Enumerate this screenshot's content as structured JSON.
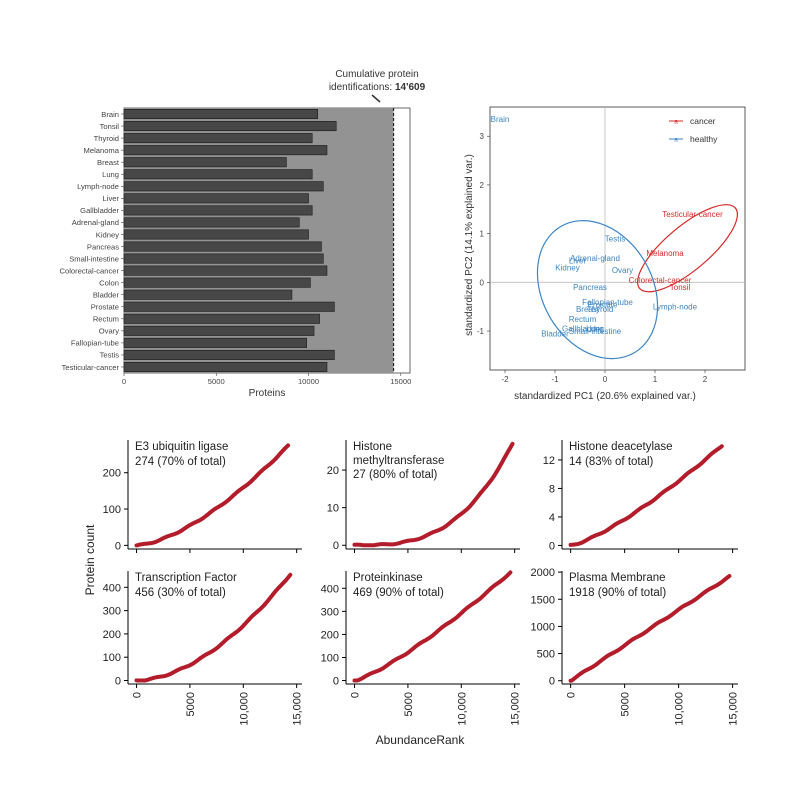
{
  "colors": {
    "bar": "#474747",
    "cumulative": "#939393",
    "cancer": "#d62a2a",
    "healthy": "#3c86c4",
    "curve": "#b31d2b",
    "grid": "#d9d9d9"
  },
  "chart_data": [
    {
      "type": "bar",
      "orientation": "horizontal",
      "categories": [
        "Brain",
        "Tonsil",
        "Thyroid",
        "Melanoma",
        "Breast",
        "Lung",
        "Lymph-node",
        "Liver",
        "Gallbladder",
        "Adrenal-gland",
        "Kidney",
        "Pancreas",
        "Small-intestine",
        "Colorectal-cancer",
        "Colon",
        "Bladder",
        "Prostate",
        "Rectum",
        "Ovary",
        "Fallopian-tube",
        "Testis",
        "Testicular-cancer"
      ],
      "values": [
        10500,
        11500,
        10200,
        11000,
        8800,
        10200,
        10800,
        10000,
        10200,
        9500,
        10000,
        10700,
        10800,
        11000,
        10100,
        9100,
        11400,
        10600,
        10300,
        9900,
        11400,
        11000
      ],
      "cumulative_total": 14609,
      "xlabel": "Proteins",
      "xlim": [
        0,
        15500
      ],
      "xticks": [
        0,
        5000,
        10000,
        15000
      ],
      "annotation": {
        "line1": "Cumulative protein",
        "line2_prefix": "identifications: ",
        "line2_value": "14'609"
      }
    },
    {
      "type": "scatter",
      "xlabel": "standardized PC1 (20.6% explained var.)",
      "ylabel": "standardized PC2 (14.1% explained var.)",
      "xlim": [
        -2.3,
        2.8
      ],
      "ylim": [
        -1.8,
        3.6
      ],
      "xticks": [
        -2,
        -1,
        0,
        1,
        2
      ],
      "yticks": [
        -1,
        0,
        1,
        2,
        3
      ],
      "legend": {
        "position": "top-right",
        "entries": [
          "cancer",
          "healthy"
        ]
      },
      "series": [
        {
          "name": "cancer",
          "points": [
            {
              "label": "Testicular-cancer",
              "x": 1.75,
              "y": 1.4
            },
            {
              "label": "Melanoma",
              "x": 1.2,
              "y": 0.6
            },
            {
              "label": "Colorectal-cancer",
              "x": 1.1,
              "y": 0.05
            },
            {
              "label": "Tonsil",
              "x": 1.5,
              "y": -0.1
            }
          ],
          "ellipse": {
            "cx": 1.65,
            "cy": 0.7,
            "rx": 1.25,
            "ry": 0.45,
            "angle_deg": -40
          }
        },
        {
          "name": "healthy",
          "points": [
            {
              "label": "Brain",
              "x": -2.1,
              "y": 3.35
            },
            {
              "label": "Testis",
              "x": 0.2,
              "y": 0.9
            },
            {
              "label": "Adrenal-gland",
              "x": -0.2,
              "y": 0.5
            },
            {
              "label": "Liver",
              "x": -0.55,
              "y": 0.45
            },
            {
              "label": "Kidney",
              "x": -0.75,
              "y": 0.3
            },
            {
              "label": "Ovary",
              "x": 0.35,
              "y": 0.25
            },
            {
              "label": "Pancreas",
              "x": -0.3,
              "y": -0.1
            },
            {
              "label": "Fallopian-tube",
              "x": 0.05,
              "y": -0.4
            },
            {
              "label": "Prostate",
              "x": -0.05,
              "y": -0.45
            },
            {
              "label": "Breast",
              "x": -0.35,
              "y": -0.55
            },
            {
              "label": "Thyroid",
              "x": -0.1,
              "y": -0.55
            },
            {
              "label": "Lymph-node",
              "x": 1.4,
              "y": -0.5
            },
            {
              "label": "Rectum",
              "x": -0.45,
              "y": -0.75
            },
            {
              "label": "Gallbladder",
              "x": -0.45,
              "y": -0.95
            },
            {
              "label": "Lung",
              "x": -0.2,
              "y": -0.95
            },
            {
              "label": "Small-intestine",
              "x": -0.2,
              "y": -1.0
            },
            {
              "label": "Bladder",
              "x": -1.0,
              "y": -1.05
            }
          ],
          "ellipse": {
            "cx": -0.15,
            "cy": -0.15,
            "rx": 1.1,
            "ry": 1.5,
            "angle_deg": -30
          }
        }
      ]
    },
    {
      "type": "line",
      "panels": [
        {
          "title": "E3 ubiquitin ligase",
          "subtitle": "274 (70% of total)",
          "yticks": [
            0,
            100,
            200
          ],
          "ylim": [
            -10,
            290
          ],
          "end_x": 14200,
          "end_y": 274,
          "exponent": 1.55
        },
        {
          "title": "Histone methyltransferase",
          "subtitle": "27 (80% of total)",
          "yticks": [
            0,
            10,
            20
          ],
          "ylim": [
            -1,
            28
          ],
          "end_x": 14800,
          "end_y": 27,
          "exponent": 3.0
        },
        {
          "title": "Histone deacetylase",
          "subtitle": "14 (83% of total)",
          "yticks": [
            0,
            4,
            8,
            12
          ],
          "ylim": [
            -0.5,
            14.8
          ],
          "end_x": 14000,
          "end_y": 14,
          "exponent": 1.3
        },
        {
          "title": "Transcription Factor",
          "subtitle": "456 (30% of total)",
          "yticks": [
            0,
            100,
            200,
            300,
            400
          ],
          "ylim": [
            -15,
            470
          ],
          "end_x": 14400,
          "end_y": 456,
          "exponent": 1.8
        },
        {
          "title": "Proteinkinase",
          "subtitle": "469 (90% of total)",
          "yticks": [
            0,
            100,
            200,
            300,
            400
          ],
          "ylim": [
            -15,
            475
          ],
          "end_x": 14600,
          "end_y": 469,
          "exponent": 1.25
        },
        {
          "title": "Plasma Membrane",
          "subtitle": "1918 (90% of total)",
          "yticks": [
            0,
            500,
            1000,
            1500,
            2000
          ],
          "ylim": [
            -60,
            2020
          ],
          "end_x": 14700,
          "end_y": 1918,
          "exponent": 1.0
        }
      ],
      "xticks": [
        0,
        5000,
        10000,
        15000
      ],
      "xtick_labels": [
        "0",
        "5000",
        "10,000",
        "15,000"
      ],
      "xlim": [
        -800,
        15500
      ],
      "xlabel": "AbundanceRank",
      "ylabel": "Protein count"
    }
  ]
}
